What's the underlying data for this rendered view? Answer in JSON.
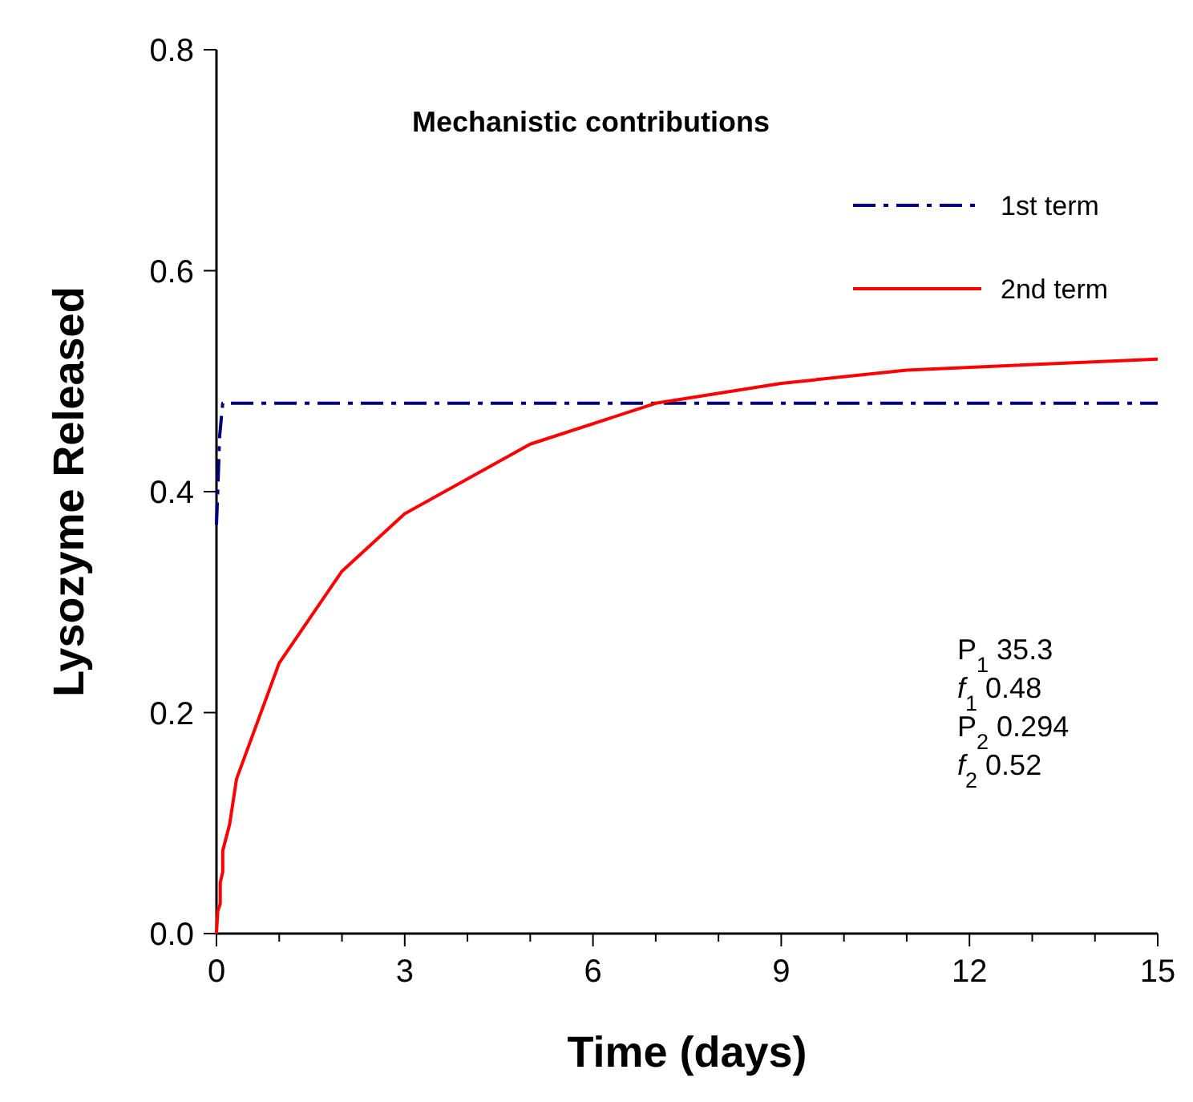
{
  "chart_data": {
    "type": "line",
    "title": "Mechanistic contributions",
    "xlabel": "Time (days)",
    "ylabel": "Lysozyme Released",
    "xlim": [
      0,
      15
    ],
    "xticks": [
      0,
      {
        "value": 1,
        "label": null
      },
      {
        "value": 2,
        "label": null
      },
      3,
      {
        "value": 4,
        "label": null
      },
      {
        "value": 5,
        "label": null
      },
      6,
      {
        "value": 7,
        "label": null
      },
      {
        "value": 8,
        "label": null
      },
      9,
      {
        "value": 10,
        "label": null
      },
      {
        "value": 11,
        "label": null
      },
      12,
      {
        "value": 13,
        "label": null
      },
      {
        "value": 14,
        "label": null
      },
      15
    ],
    "ylim": [
      0,
      0.8
    ],
    "yticks": [
      {
        "value": 0,
        "label": "0.0"
      },
      0.2,
      0.4,
      0.6,
      0.8
    ],
    "legend": "top right",
    "grid": false,
    "marker": "none",
    "series": [
      {
        "name": "1st term",
        "color": "#000080",
        "line_style": "dashdot",
        "x": [
          0,
          0.02,
          0.05,
          0.1,
          15
        ],
        "values": [
          0.37,
          0.4,
          0.45,
          0.48,
          0.48
        ]
      },
      {
        "name": "2nd term",
        "color": "#ff0000",
        "line_style": "solid",
        "x": [
          0,
          0.02,
          0.06,
          0.06,
          0.1,
          0.1,
          0.21,
          0.32,
          1,
          2,
          3,
          5,
          7,
          9,
          11,
          15
        ],
        "values": [
          0,
          0.02,
          0.027,
          0.046,
          0.056,
          0.075,
          0.099,
          0.14,
          0.245,
          0.328,
          0.38,
          0.443,
          0.48,
          0.498,
          0.51,
          0.52
        ]
      }
    ],
    "annotations": [
      "P$_{1}$  35.3",
      "f$_{1}$  0.48",
      "P$_{2}$  0.294",
      "f$_{2}$  0.52"
    ]
  }
}
